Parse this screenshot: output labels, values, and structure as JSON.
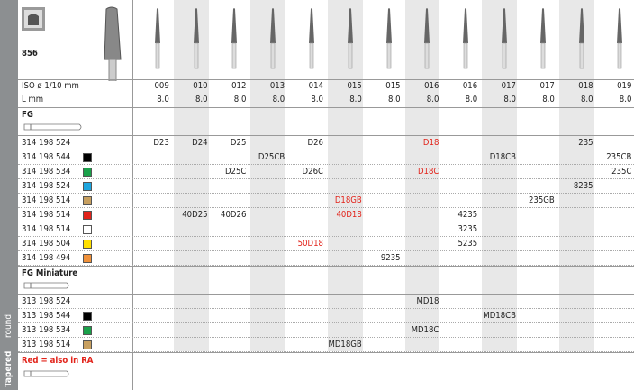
{
  "header": {
    "title": "856",
    "iso_label": "ISO ø 1/10 mm",
    "length_label": "L mm",
    "sizes": [
      "009",
      "010",
      "012",
      "013",
      "014",
      "015",
      "015",
      "016",
      "016",
      "017",
      "017",
      "018",
      "019"
    ],
    "lengths": [
      "8.0",
      "8.0",
      "8.0",
      "8.0",
      "8.0",
      "8.0",
      "8.0",
      "8.0",
      "8.0",
      "8.0",
      "8.0",
      "8.0",
      "8.0"
    ]
  },
  "sections": [
    {
      "title": "FG",
      "rows": [
        {
          "code": "314 198 524",
          "swatch": null,
          "cells": [
            "D23",
            "D24",
            "D25",
            null,
            "D26",
            null,
            null,
            {
              "text": "D18",
              "color": "#e2231a"
            },
            null,
            null,
            null,
            "235",
            null
          ]
        },
        {
          "code": "314 198 544",
          "swatch": "#000000",
          "cells": [
            null,
            null,
            null,
            "D25CB",
            null,
            null,
            null,
            null,
            null,
            "D18CB",
            null,
            null,
            "235CB"
          ]
        },
        {
          "code": "314 198 534",
          "swatch": "#1aa14a",
          "cells": [
            null,
            null,
            "D25C",
            null,
            "D26C",
            null,
            null,
            {
              "text": "D18C",
              "color": "#e2231a"
            },
            null,
            null,
            null,
            null,
            "235C"
          ]
        },
        {
          "code": "314 198 524",
          "swatch": "#1ea6df",
          "cells": [
            null,
            null,
            null,
            null,
            null,
            null,
            null,
            null,
            null,
            null,
            null,
            "8235",
            null
          ]
        },
        {
          "code": "314 198 514",
          "swatch": "#c8a060",
          "cells": [
            null,
            null,
            null,
            null,
            null,
            {
              "text": "D18GB",
              "color": "#e2231a"
            },
            null,
            null,
            null,
            null,
            "235GB",
            null,
            null
          ]
        },
        {
          "code": "314 198 514",
          "swatch": "#e2231a",
          "cells": [
            null,
            "40D25",
            "40D26",
            null,
            null,
            {
              "text": "40D18",
              "color": "#e2231a"
            },
            null,
            null,
            "4235",
            null,
            null,
            null,
            null
          ]
        },
        {
          "code": "314 198 514",
          "swatch": "#ffffff",
          "cells": [
            null,
            null,
            null,
            null,
            null,
            null,
            null,
            null,
            "3235",
            null,
            null,
            null,
            null
          ]
        },
        {
          "code": "314 198 504",
          "swatch": "#ffe000",
          "cells": [
            null,
            null,
            null,
            null,
            {
              "text": "50D18",
              "color": "#e2231a"
            },
            null,
            null,
            null,
            "5235",
            null,
            null,
            null,
            null
          ]
        },
        {
          "code": "314 198 494",
          "swatch": "#f0913a",
          "cells": [
            null,
            null,
            null,
            null,
            null,
            null,
            "9235",
            null,
            null,
            null,
            null,
            null,
            null
          ]
        }
      ]
    },
    {
      "title": "FG Miniature",
      "rows": [
        {
          "code": "313 198 524",
          "swatch": null,
          "cells": [
            null,
            null,
            null,
            null,
            null,
            null,
            null,
            "MD18",
            null,
            null,
            null,
            null,
            null
          ]
        },
        {
          "code": "313 198 544",
          "swatch": "#000000",
          "cells": [
            null,
            null,
            null,
            null,
            null,
            null,
            null,
            null,
            null,
            "MD18CB",
            null,
            null,
            null
          ]
        },
        {
          "code": "313 198 534",
          "swatch": "#1aa14a",
          "cells": [
            null,
            null,
            null,
            null,
            null,
            null,
            null,
            "MD18C",
            null,
            null,
            null,
            null,
            null
          ]
        },
        {
          "code": "313 198 514",
          "swatch": "#c8a060",
          "cells": [
            null,
            null,
            null,
            null,
            null,
            "MD18GB",
            null,
            null,
            null,
            null,
            null,
            null,
            null
          ]
        }
      ]
    }
  ],
  "footer": {
    "note": "Red = also in RA"
  },
  "sidebar": {
    "shape": "Tapered",
    "tip": "round"
  }
}
